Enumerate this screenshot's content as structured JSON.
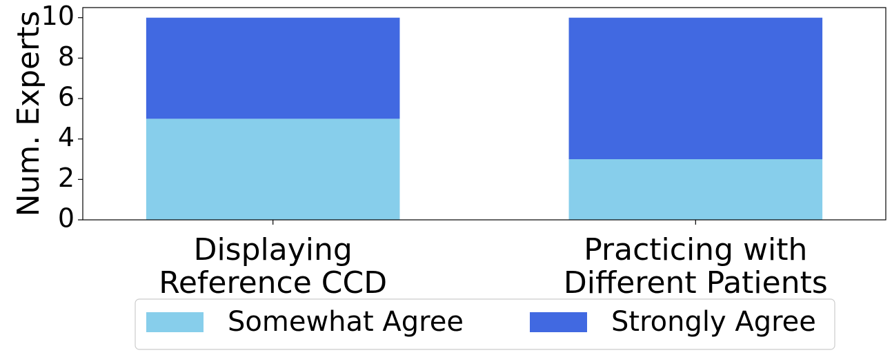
{
  "chart_data": {
    "type": "bar",
    "stacked": true,
    "categories": [
      [
        "Displaying",
        "Reference CCD"
      ],
      [
        "Practicing with",
        "Different Patients"
      ]
    ],
    "series": [
      {
        "name": "Somewhat Agree",
        "values": [
          5,
          3
        ],
        "color": "#87CEEB"
      },
      {
        "name": "Strongly Agree",
        "values": [
          5,
          7
        ],
        "color": "#4169E1"
      }
    ],
    "xlabel": "",
    "ylabel": "Num. Experts",
    "ylim": [
      0,
      10.5
    ],
    "yticks": [
      0,
      2,
      4,
      6,
      8,
      10
    ],
    "grid": false,
    "legend": "bottom-center"
  }
}
